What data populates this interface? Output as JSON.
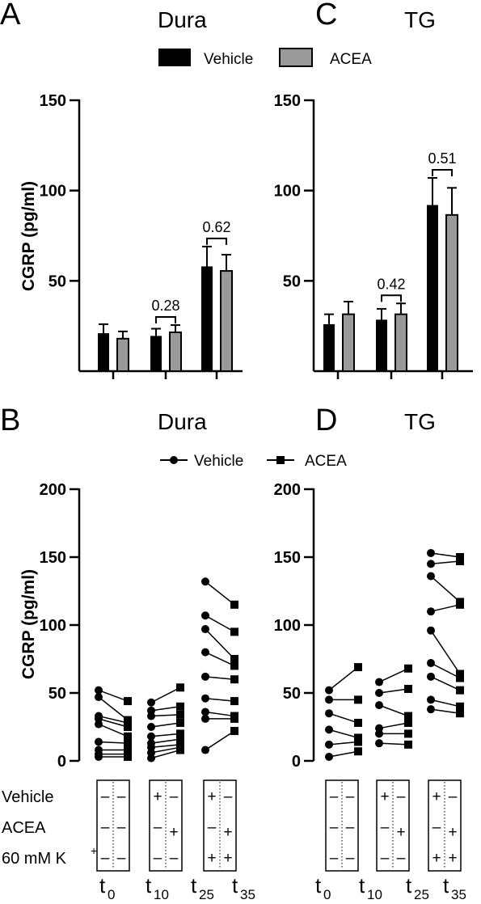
{
  "panels_text": {
    "A": "A",
    "B": "B",
    "C": "C",
    "D": "D",
    "A_title": "Dura",
    "B_title": "Dura",
    "C_title": "TG",
    "D_title": "TG"
  },
  "legend_top": {
    "vehicle": "Vehicle",
    "acea": "ACEA"
  },
  "legend_bottom": {
    "vehicle": "Vehicle",
    "acea": "ACEA"
  },
  "colors": {
    "vehicle": "#000000",
    "acea": "#9a9a9a"
  },
  "treatment": {
    "row_labels": [
      "Vehicle",
      "ACEA",
      "60 mM K",
      "+"
    ],
    "time_labels": [
      {
        "t": "t",
        "sub": "0"
      },
      {
        "t": "t",
        "sub": "10"
      },
      {
        "t": "t",
        "sub": "25"
      },
      {
        "t": "t",
        "sub": "35"
      }
    ],
    "groups": [
      {
        "vehicle": [
          "–",
          "–"
        ],
        "acea": [
          "–",
          "–"
        ],
        "k": [
          "–",
          "–"
        ]
      },
      {
        "vehicle": [
          "+",
          "–"
        ],
        "acea": [
          "–",
          "+"
        ],
        "k": [
          "–",
          "–"
        ]
      },
      {
        "vehicle": [
          "+",
          "–"
        ],
        "acea": [
          "–",
          "+"
        ],
        "k": [
          "+",
          "+"
        ]
      }
    ]
  },
  "chart_data": [
    {
      "panel": "A",
      "type": "bar",
      "title": "Dura",
      "ylabel": "CGRP (pg/ml)",
      "ylim": [
        0,
        150
      ],
      "yticks": [
        50,
        100,
        150
      ],
      "groups": 3,
      "series": [
        {
          "name": "Vehicle",
          "values": [
            21,
            19.5,
            58
          ],
          "errors": [
            5,
            4,
            11
          ]
        },
        {
          "name": "ACEA",
          "values": [
            18,
            21.5,
            55.5
          ],
          "errors": [
            4,
            4,
            9
          ]
        }
      ],
      "annotations": [
        {
          "group": 1,
          "label": "0.28"
        },
        {
          "group": 2,
          "label": "0.62"
        }
      ]
    },
    {
      "panel": "C",
      "type": "bar",
      "title": "TG",
      "ylabel": "",
      "ylim": [
        0,
        150
      ],
      "yticks": [
        50,
        100,
        150
      ],
      "groups": 3,
      "series": [
        {
          "name": "Vehicle",
          "values": [
            26,
            28.5,
            92
          ],
          "errors": [
            5.5,
            6,
            15
          ]
        },
        {
          "name": "ACEA",
          "values": [
            31.5,
            31.5,
            86.5
          ],
          "errors": [
            7,
            6,
            15
          ]
        }
      ],
      "annotations": [
        {
          "group": 1,
          "label": "0.42"
        },
        {
          "group": 2,
          "label": "0.51"
        }
      ]
    },
    {
      "panel": "B",
      "type": "scatter",
      "title": "Dura",
      "ylabel": "CGRP (pg/ml)",
      "ylim": [
        0,
        200
      ],
      "yticks": [
        0,
        50,
        100,
        150,
        200
      ],
      "pairs": [
        {
          "vehicle": [
            52,
            47,
            33,
            31,
            27,
            14,
            8,
            5,
            3
          ],
          "acea": [
            44,
            30,
            28,
            25,
            18,
            13,
            8,
            5,
            3
          ]
        },
        {
          "vehicle": [
            43,
            37,
            33,
            25,
            18,
            13,
            10,
            6,
            2
          ],
          "acea": [
            54,
            40,
            34,
            28,
            20,
            16,
            12,
            10,
            8
          ]
        },
        {
          "vehicle": [
            132,
            107,
            97,
            80,
            62,
            46,
            36,
            31,
            8
          ],
          "acea": [
            115,
            95,
            75,
            70,
            60,
            44,
            33,
            31,
            22
          ]
        }
      ]
    },
    {
      "panel": "D",
      "type": "scatter",
      "title": "TG",
      "ylabel": "",
      "ylim": [
        0,
        200
      ],
      "yticks": [
        0,
        50,
        100,
        150,
        200
      ],
      "pairs": [
        {
          "vehicle": [
            52,
            45,
            35,
            23,
            12,
            3
          ],
          "acea": [
            69,
            45,
            28,
            17,
            14,
            7
          ]
        },
        {
          "vehicle": [
            58,
            50,
            41,
            24,
            20,
            13
          ],
          "acea": [
            68,
            53,
            33,
            28,
            20,
            12
          ]
        },
        {
          "vehicle": [
            153,
            145,
            136,
            110,
            96,
            72,
            62,
            45,
            38
          ],
          "acea": [
            150,
            147,
            117,
            115,
            64,
            61,
            52,
            40,
            35
          ]
        }
      ]
    }
  ]
}
